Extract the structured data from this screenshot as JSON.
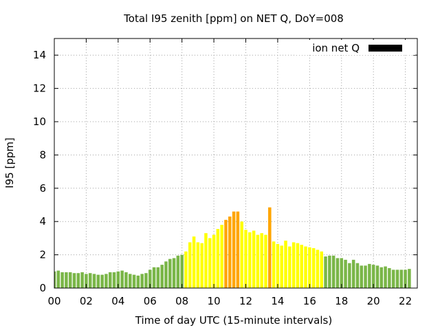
{
  "chart_data": {
    "type": "bar",
    "title": "Total I95 zenith [ppm] on NET Q, DoY=008",
    "xlabel": "Time of day UTC (15-minute intervals)",
    "ylabel": "I95 [ppm]",
    "xlim": [
      0,
      22.75
    ],
    "ylim": [
      0,
      15
    ],
    "grid": true,
    "legend": {
      "label": "ion net Q",
      "position": "top-right",
      "color": "#000000"
    },
    "x_ticks": [
      "00",
      "02",
      "04",
      "06",
      "08",
      "10",
      "12",
      "14",
      "16",
      "18",
      "20",
      "22"
    ],
    "y_ticks": [
      "0",
      "2",
      "4",
      "6",
      "8",
      "10",
      "12",
      "14"
    ],
    "bar_interval_hours": 0.25,
    "colors": {
      "low": "#7ab648",
      "moderate": "#ffff00",
      "high": "#ffa500"
    },
    "values": [
      1.0,
      1.05,
      0.95,
      0.95,
      0.95,
      0.9,
      0.9,
      0.95,
      0.85,
      0.9,
      0.85,
      0.8,
      0.8,
      0.85,
      0.95,
      0.95,
      1.0,
      1.05,
      0.95,
      0.85,
      0.8,
      0.75,
      0.85,
      0.9,
      1.1,
      1.25,
      1.25,
      1.4,
      1.6,
      1.75,
      1.8,
      1.95,
      2.0,
      2.2,
      2.75,
      3.1,
      2.75,
      2.7,
      3.3,
      3.0,
      3.2,
      3.55,
      3.8,
      4.1,
      4.3,
      4.6,
      4.6,
      4.0,
      3.5,
      3.35,
      3.45,
      3.2,
      3.3,
      3.2,
      4.85,
      2.8,
      2.65,
      2.55,
      2.85,
      2.5,
      2.75,
      2.7,
      2.6,
      2.5,
      2.45,
      2.4,
      2.3,
      2.2,
      1.9,
      1.95,
      1.95,
      1.8,
      1.8,
      1.7,
      1.5,
      1.7,
      1.5,
      1.35,
      1.35,
      1.45,
      1.4,
      1.35,
      1.25,
      1.3,
      1.2,
      1.1,
      1.1,
      1.1,
      1.1,
      1.15
    ],
    "value_categories": [
      "low",
      "low",
      "low",
      "low",
      "low",
      "low",
      "low",
      "low",
      "low",
      "low",
      "low",
      "low",
      "low",
      "low",
      "low",
      "low",
      "low",
      "low",
      "low",
      "low",
      "low",
      "low",
      "low",
      "low",
      "low",
      "low",
      "low",
      "low",
      "low",
      "low",
      "low",
      "low",
      "low",
      "moderate",
      "moderate",
      "moderate",
      "moderate",
      "moderate",
      "moderate",
      "moderate",
      "moderate",
      "moderate",
      "moderate",
      "high",
      "high",
      "high",
      "high",
      "moderate",
      "moderate",
      "moderate",
      "moderate",
      "moderate",
      "moderate",
      "moderate",
      "high",
      "moderate",
      "moderate",
      "moderate",
      "moderate",
      "moderate",
      "moderate",
      "moderate",
      "moderate",
      "moderate",
      "moderate",
      "moderate",
      "moderate",
      "moderate",
      "low",
      "low",
      "low",
      "low",
      "low",
      "low",
      "low",
      "low",
      "low",
      "low",
      "low",
      "low",
      "low",
      "low",
      "low",
      "low",
      "low",
      "low",
      "low",
      "low",
      "low",
      "low"
    ]
  }
}
